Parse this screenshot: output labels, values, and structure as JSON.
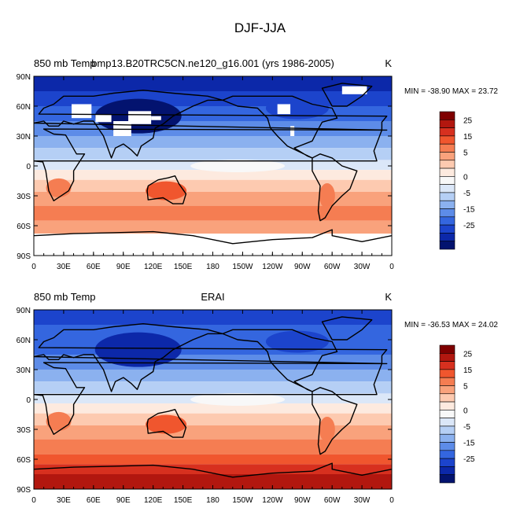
{
  "page": {
    "title": "DJF-JJA"
  },
  "chart_data": [
    {
      "type": "heatmap",
      "left_title": "850 mb Temp",
      "center_title": "bmp13.B20TRC5CN.ne120_g16.001 (yrs 1986-2005)",
      "units": "K",
      "stats_text": "MIN = -38.90 MAX =  23.72",
      "min": -38.9,
      "max": 23.72,
      "x_ticks": [
        "0",
        "30E",
        "60E",
        "90E",
        "120E",
        "150E",
        "180",
        "150W",
        "120W",
        "90W",
        "60W",
        "30W",
        "0"
      ],
      "y_ticks": [
        "90N",
        "60N",
        "30N",
        "0",
        "30S",
        "60S",
        "90S"
      ],
      "colorbar": {
        "labels": [
          "25",
          "15",
          "5",
          "0",
          "-5",
          "-15",
          "-25"
        ],
        "colors": [
          "#7f0000",
          "#b2170f",
          "#d7301f",
          "#f0562e",
          "#f57d52",
          "#f9a27c",
          "#fdcab0",
          "#fdeadf",
          "#f8f8f8",
          "#dbe7f8",
          "#b5cff5",
          "#8bb1ef",
          "#5d8ce8",
          "#3466df",
          "#1c44cc",
          "#0c28a9",
          "#03136f"
        ]
      },
      "missing_data": "land areas above 850 mb left blank"
    },
    {
      "type": "heatmap",
      "left_title": "850 mb Temp",
      "center_title": "ERAI",
      "units": "K",
      "stats_text": "MIN = -36.53 MAX =  24.02",
      "min": -36.53,
      "max": 24.02,
      "x_ticks": [
        "0",
        "30E",
        "60E",
        "90E",
        "120E",
        "150E",
        "180",
        "150W",
        "120W",
        "90W",
        "60W",
        "30W",
        "0"
      ],
      "y_ticks": [
        "90N",
        "60N",
        "30N",
        "0",
        "30S",
        "60S",
        "90S"
      ],
      "colorbar": {
        "labels": [
          "25",
          "15",
          "5",
          "0",
          "-5",
          "-15",
          "-25"
        ],
        "colors": [
          "#7f0000",
          "#b2170f",
          "#d7301f",
          "#f0562e",
          "#f57d52",
          "#f9a27c",
          "#fdcab0",
          "#fdeadf",
          "#f8f8f8",
          "#dbe7f8",
          "#b5cff5",
          "#8bb1ef",
          "#5d8ce8",
          "#3466df",
          "#1c44cc",
          "#0c28a9",
          "#03136f"
        ]
      }
    }
  ]
}
